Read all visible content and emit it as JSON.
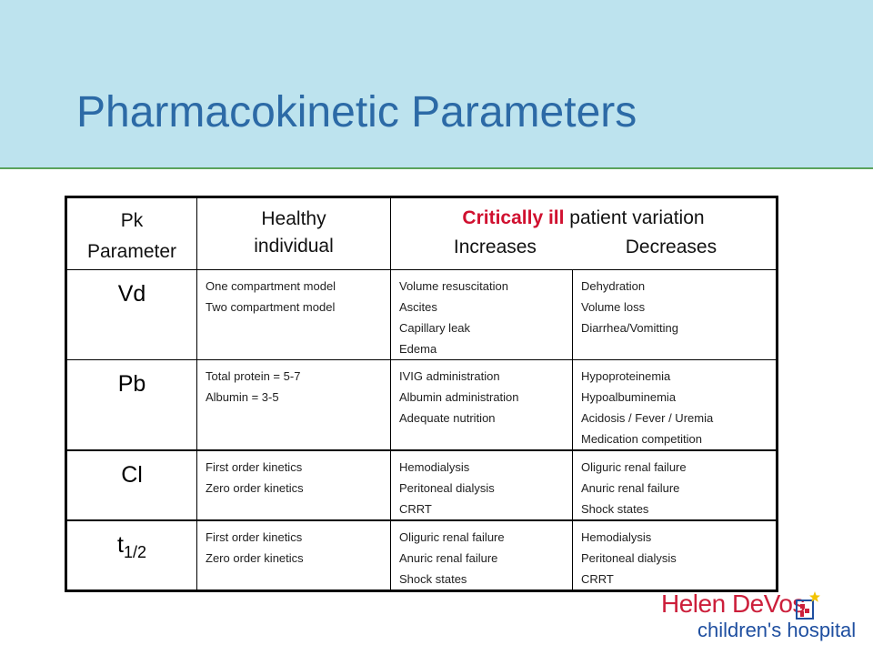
{
  "slide": {
    "title": "Pharmacokinetic Parameters"
  },
  "table": {
    "header": {
      "pk_line1": "Pk",
      "pk_line2": "Parameter",
      "healthy_line1": "Healthy",
      "healthy_line2": "individual",
      "critical_emph": "Critically ill",
      "critical_rest": " patient variation",
      "increases": "Increases",
      "decreases": "Decreases"
    },
    "rows": [
      {
        "param": "Vd",
        "healthy": [
          "One compartment model",
          "Two compartment model"
        ],
        "increases": [
          "Volume resuscitation",
          "Ascites",
          "Capillary leak",
          "Edema"
        ],
        "decreases": [
          "Dehydration",
          "Volume loss",
          "Diarrhea/Vomitting"
        ]
      },
      {
        "param": "Pb",
        "healthy": [
          "Total protein = 5-7",
          "Albumin = 3-5"
        ],
        "increases": [
          "IVIG administration",
          "Albumin administration",
          "Adequate nutrition"
        ],
        "decreases": [
          "Hypoproteinemia",
          "Hypoalbuminemia",
          "Acidosis / Fever / Uremia",
          "Medication competition"
        ]
      },
      {
        "param": "Cl",
        "healthy": [
          "First order kinetics",
          "Zero order kinetics"
        ],
        "increases": [
          "Hemodialysis",
          "Peritoneal dialysis",
          "CRRT"
        ],
        "decreases": [
          "Oliguric renal failure",
          "Anuric renal failure",
          "Shock states"
        ]
      },
      {
        "param_base": "t",
        "param_sub": "1/2",
        "healthy": [
          "First order kinetics",
          "Zero order kinetics"
        ],
        "increases": [
          "Oliguric renal failure",
          "Anuric renal failure",
          "Shock states"
        ],
        "decreases": [
          "Hemodialysis",
          "Peritoneal dialysis",
          "CRRT"
        ]
      }
    ]
  },
  "logo": {
    "name": "Helen DeVos",
    "subtitle": "children's hospital",
    "colors": {
      "name": "#cc1f3b",
      "subtitle": "#1f4fa0",
      "star": "#f2c300"
    }
  },
  "colors": {
    "title": "#2c6aa6",
    "band": "#bde3ee",
    "band_rule": "#5aa35c",
    "critical": "#d0102f"
  }
}
